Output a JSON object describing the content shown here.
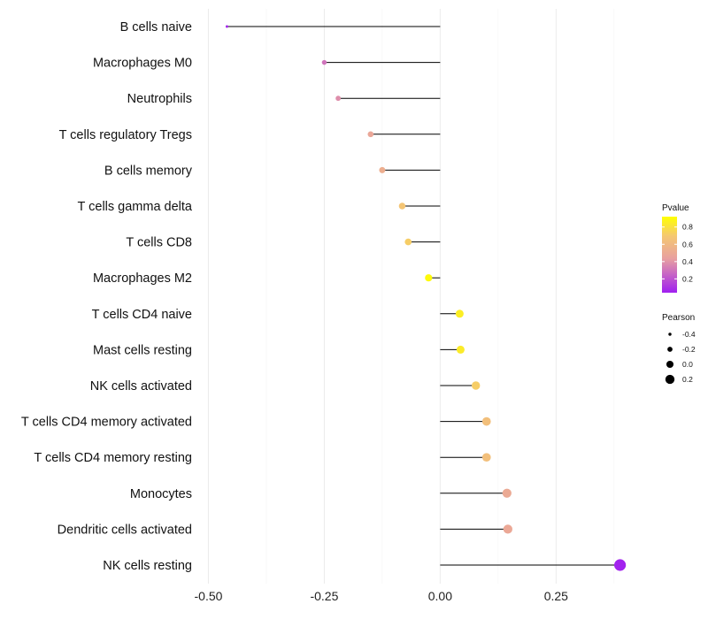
{
  "chart_data": {
    "type": "lollipop",
    "title": "",
    "xlabel": "",
    "ylabel": "",
    "x_range": [
      -0.52,
      0.425
    ],
    "x_ticks": [
      -0.5,
      -0.25,
      0.0,
      0.25
    ],
    "x_tick_labels": [
      "-0.50",
      "-0.25",
      "0.00",
      "0.25"
    ],
    "grid": true,
    "categories": [
      "B cells naive",
      "Macrophages M0",
      "Neutrophils",
      "T cells regulatory  Tregs",
      "B cells memory",
      "T cells gamma delta",
      "T cells CD8",
      "Macrophages M2",
      "T cells CD4 naive",
      "Mast cells resting",
      "NK cells activated",
      "T cells CD4 memory activated",
      "T cells CD4 memory resting",
      "Monocytes",
      "Dendritic cells activated",
      "NK cells resting"
    ],
    "pearson": [
      -0.46,
      -0.25,
      -0.22,
      -0.15,
      -0.125,
      -0.082,
      -0.069,
      -0.025,
      0.042,
      0.044,
      0.077,
      0.1,
      0.1,
      0.144,
      0.146,
      0.388
    ],
    "pvalue": [
      0.06,
      0.3,
      0.38,
      0.48,
      0.53,
      0.68,
      0.72,
      0.9,
      0.85,
      0.84,
      0.72,
      0.64,
      0.64,
      0.5,
      0.49,
      0.05
    ],
    "color_legend": {
      "title": "Pvalue",
      "ticks": [
        0.8,
        0.6,
        0.4,
        0.2
      ],
      "tick_labels": [
        "0.8",
        "0.6",
        "0.4",
        "0.2"
      ],
      "range": [
        0.04,
        0.92
      ],
      "colors": [
        "#a020f0",
        "#e8a0a0",
        "#ffff00"
      ],
      "position": "right"
    },
    "size_legend": {
      "title": "Pearson",
      "values": [
        -0.4,
        -0.2,
        0.0,
        0.2
      ],
      "labels": [
        "-0.4",
        "-0.2",
        "0.0",
        "0.2"
      ],
      "position": "right"
    }
  }
}
